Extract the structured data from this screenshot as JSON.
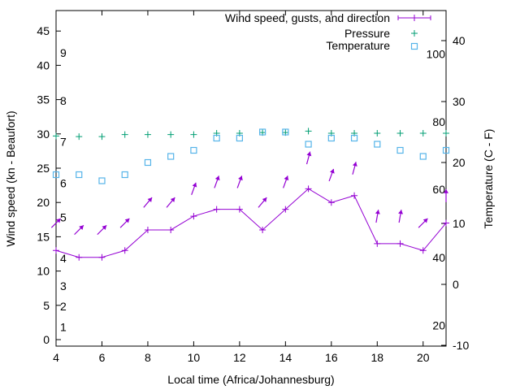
{
  "chart_data": {
    "type": "line",
    "xlabel": "Local time (Africa/Johannesburg)",
    "ylabel": "Wind speed (kn - Beaufort)",
    "y2label": "Temperature (C - F)",
    "xlim": [
      4,
      21
    ],
    "ylim": [
      -1,
      49
    ],
    "y2lim": [
      -10,
      45
    ],
    "xticks": [
      4,
      6,
      8,
      10,
      12,
      14,
      16,
      18,
      20
    ],
    "yticks": [
      0,
      5,
      10,
      15,
      20,
      25,
      30,
      35,
      40,
      45
    ],
    "y2ticks": [
      -10,
      0,
      10,
      20,
      30,
      40
    ],
    "legend_position": "top-right",
    "x": [
      4,
      5,
      6,
      7,
      8,
      9,
      10,
      11,
      12,
      13,
      14,
      15,
      16,
      17,
      18,
      19,
      20,
      21
    ],
    "series": [
      {
        "name": "Wind speed, gusts, and direction",
        "color": "#9400d3",
        "axis": "y",
        "values": [
          13,
          12,
          12,
          13,
          16,
          16,
          18,
          19,
          19,
          16,
          19,
          22,
          20,
          21,
          14,
          14,
          13,
          17
        ],
        "gusts": [
          17,
          16,
          16,
          17,
          20,
          20,
          22,
          23,
          23,
          20,
          23,
          26.5,
          24,
          25,
          18,
          18,
          17,
          21
        ],
        "arrow_direction_deg": [
          45,
          45,
          45,
          45,
          40,
          40,
          20,
          20,
          20,
          40,
          20,
          15,
          20,
          15,
          10,
          10,
          45,
          0
        ]
      },
      {
        "name": "Pressure",
        "color": "#009e73",
        "axis": "y",
        "values": [
          29.7,
          29.6,
          29.6,
          29.9,
          29.9,
          29.9,
          29.9,
          30.1,
          30.1,
          30.2,
          30.2,
          30.4,
          30.1,
          30.1,
          30.1,
          30.1,
          30.1,
          30.1
        ]
      },
      {
        "name": "Temperature",
        "color": "#56b4e9",
        "axis": "y2",
        "values": [
          18,
          18,
          17,
          18,
          20,
          21,
          22,
          24,
          24,
          25,
          25,
          23,
          24,
          24,
          23,
          22,
          21,
          22
        ]
      }
    ],
    "beaufort_labels": [
      {
        "text": "1",
        "kn": 1
      },
      {
        "text": "2",
        "kn": 4
      },
      {
        "text": "3",
        "kn": 7
      },
      {
        "text": "4",
        "kn": 11
      },
      {
        "text": "5",
        "kn": 17
      },
      {
        "text": "6",
        "kn": 22
      },
      {
        "text": "7",
        "kn": 28
      },
      {
        "text": "8",
        "kn": 34
      },
      {
        "text": "9",
        "kn": 41
      }
    ],
    "fahrenheit_labels": [
      {
        "text": "20",
        "c": -6.7
      },
      {
        "text": "40",
        "c": 4.4
      },
      {
        "text": "60",
        "c": 15.6
      },
      {
        "text": "80",
        "c": 26.7
      },
      {
        "text": "100",
        "c": 37.8
      }
    ]
  }
}
